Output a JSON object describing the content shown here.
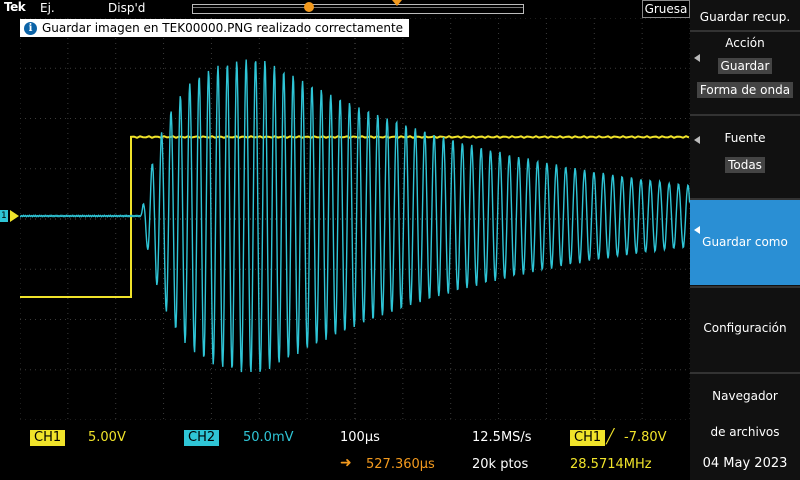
{
  "top": {
    "brand": "Tek",
    "mode": "Ej.",
    "display": "Disp'd",
    "coarse_label": "Gruesa"
  },
  "message": "Guardar imagen en TEK00000.PNG realizado correctamente",
  "bottom": {
    "ch1_label": "CH1",
    "ch1_scale": "5.00V",
    "ch2_label": "CH2",
    "ch2_scale": "50.0mV",
    "timebase": "100µs",
    "sample_rate": "12.5MS/s",
    "trigger_source": "CH1",
    "trigger_level": "-7.80V",
    "h_position": "527.360µs",
    "record_length": "20k ptos",
    "frequency": "28.5714MHz",
    "date": "04 May 2023"
  },
  "menu": {
    "title": "Guardar recup.",
    "accion_label": "Acción",
    "accion_guardar": "Guardar",
    "accion_forma": "Forma de onda",
    "fuente_label": "Fuente",
    "fuente_value": "Todas",
    "guardar_como": "Guardar como",
    "configuracion": "Configuración",
    "navegador_line1": "Navegador",
    "navegador_line2": "de archivos"
  },
  "colors": {
    "ch1": "#f0e32a",
    "ch2": "#2fc5d6",
    "trigger": "#f39a1e",
    "selected": "#2a8fd4"
  }
}
